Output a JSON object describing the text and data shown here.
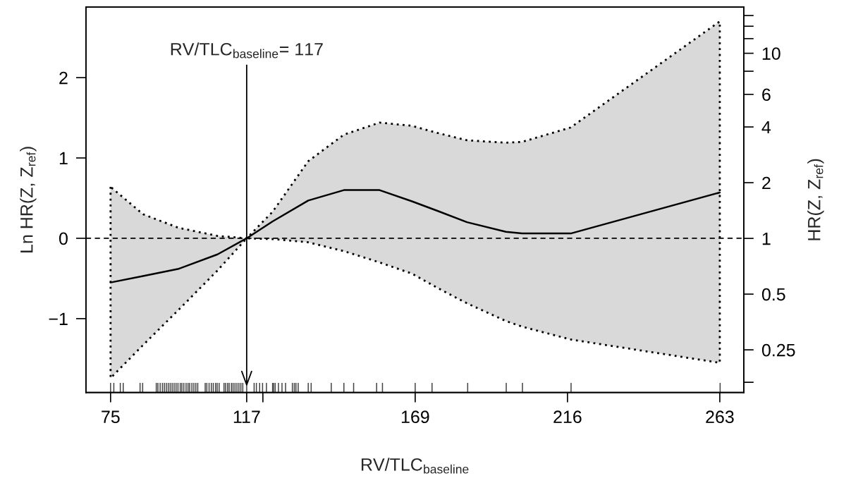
{
  "chart_data": {
    "type": "line",
    "xlabel": "RV/TLC$_{baseline}$",
    "ylabel": "Ln HR(Z, Z$_{ref}$)",
    "y2label": "HR(Z, Z$_{ref}$)",
    "annotations": [
      "RV/TLC$_{baseline}$= 117"
    ],
    "xlim": [
      67.4,
      270.4
    ],
    "xticks": [
      75,
      117,
      {
        "value": 122,
        "label": null
      },
      169,
      216,
      263
    ],
    "ylim": [
      -1.92,
      2.88
    ],
    "yticks": [
      {
        "value": -1,
        "label": "−1"
      },
      0,
      1,
      2
    ],
    "y2lim": [
      0.147,
      17.8
    ],
    "y2ticks": [
      {
        "value": 0.167,
        "label": null
      },
      0.25,
      0.5,
      1,
      2,
      4,
      6,
      {
        "value": 8,
        "label": null
      },
      10,
      {
        "value": 12,
        "label": null
      },
      {
        "value": 14,
        "label": null
      },
      {
        "value": 16,
        "label": null
      }
    ],
    "log": "y2",
    "grid": false,
    "line_style": "solid",
    "ref_lines": [
      {
        "axis": "y",
        "value": 0,
        "line_style": "dashed",
        "color": "#000000"
      },
      {
        "axis": "x",
        "value": 117,
        "line_style": "solid",
        "color": "#000000"
      }
    ],
    "series": [
      {
        "color": "#000000",
        "x": [
          75,
          85,
          96,
          108,
          117,
          125,
          136,
          147,
          158,
          168,
          176,
          185,
          197,
          202,
          217,
          263
        ],
        "values": [
          -0.55,
          -0.47,
          -0.38,
          -0.2,
          0,
          0.21,
          0.47,
          0.6,
          0.6,
          0.46,
          0.34,
          0.2,
          0.08,
          0.06,
          0.06,
          0.57
        ],
        "lower": [
          -1.74,
          -1.33,
          -0.89,
          -0.4,
          0,
          -0.01,
          -0.05,
          -0.16,
          -0.3,
          -0.44,
          -0.62,
          -0.81,
          -1.03,
          -1.1,
          -1.26,
          -1.55
        ],
        "upper": [
          0.64,
          0.3,
          0.13,
          0.03,
          0,
          0.33,
          0.96,
          1.29,
          1.44,
          1.4,
          1.31,
          1.22,
          1.19,
          1.2,
          1.38,
          2.7
        ]
      },
      {
        "type": "bar",
        "color": "#444444",
        "base": [
          -1.92,
          -1.92,
          -1.92,
          -1.92,
          -1.92,
          -1.92,
          -1.92,
          -1.92,
          -1.92,
          -1.92,
          -1.92,
          -1.92,
          -1.92,
          -1.92,
          -1.92,
          -1.92,
          -1.92,
          -1.92,
          -1.92,
          -1.92,
          -1.92,
          -1.92,
          -1.92,
          -1.92,
          -1.92,
          -1.92,
          -1.92,
          -1.92,
          -1.92,
          -1.92,
          -1.92,
          -1.92,
          -1.92,
          -1.92,
          -1.92,
          -1.92,
          -1.92,
          -1.92,
          -1.92,
          -1.92,
          -1.92,
          -1.92,
          -1.92,
          -1.92,
          -1.92,
          -1.92,
          -1.92,
          -1.92,
          -1.92,
          -1.92,
          -1.92,
          -1.92,
          -1.92,
          -1.92,
          -1.92,
          -1.92,
          -1.92,
          -1.92,
          -1.92,
          -1.92,
          -1.92,
          -1.92,
          -1.92,
          -1.92,
          -1.92,
          -1.92,
          -1.92,
          -1.92,
          -1.92,
          -1.92,
          -1.92,
          -1.92,
          -1.92,
          -1.92,
          -1.92,
          -1.92,
          -1.92
        ],
        "values": [
          0.12,
          0.12,
          0.12,
          0.12,
          0.12,
          0.12,
          0.12,
          0.12,
          0.12,
          0.12,
          0.12,
          0.12,
          0.12,
          0.12,
          0.12,
          0.12,
          0.12,
          0.12,
          0.12,
          0.12,
          0.12,
          0.12,
          0.12,
          0.12,
          0.12,
          0.12,
          0.12,
          0.12,
          0.12,
          0.12,
          0.12,
          0.12,
          0.12,
          0.12,
          0.12,
          0.12,
          0.12,
          0.12,
          0.12,
          0.12,
          0.12,
          0.12,
          0.12,
          0.12,
          0.12,
          0.12,
          0.12,
          0.12,
          0.12,
          0.12,
          0.12,
          0.12,
          0.12,
          0.12,
          0.12,
          0.12,
          0.12,
          0.12,
          0.12,
          0.12,
          0.12,
          0.12,
          0.12,
          0.12,
          0.12,
          0.12,
          0.12,
          0.12,
          0.12,
          0.12,
          0.12,
          0.12,
          0.12,
          0.12,
          0.12,
          0.12,
          0.12
        ],
        "x": [
          75.0,
          76.0,
          78.0,
          78.9,
          84.1,
          84.9,
          89.1,
          89.6,
          90.3,
          91.0,
          91.6,
          92.2,
          92.8,
          93.4,
          94.0,
          94.6,
          95.2,
          95.8,
          96.5,
          97.0,
          97.6,
          98.3,
          98.9,
          99.4,
          100.1,
          100.7,
          101.3,
          101.9,
          104.2,
          104.7,
          105.4,
          106.1,
          106.7,
          107.4,
          107.9,
          108.5,
          110.0,
          110.5,
          111.1,
          111.6,
          112.3,
          112.8,
          113.4,
          114.0,
          114.6,
          115.2,
          115.8,
          117.0,
          119.3,
          120.0,
          121.0,
          121.9,
          123.1,
          125.0,
          125.3,
          125.8,
          126.8,
          127.9,
          129.0,
          131.1,
          131.7,
          132.2,
          132.9,
          136.0,
          136.9,
          143.1,
          147.0,
          150.0,
          157.1,
          158.9,
          169.0,
          174.2,
          185.2,
          197.1,
          202.1,
          217.1,
          263.1
        ]
      }
    ]
  }
}
